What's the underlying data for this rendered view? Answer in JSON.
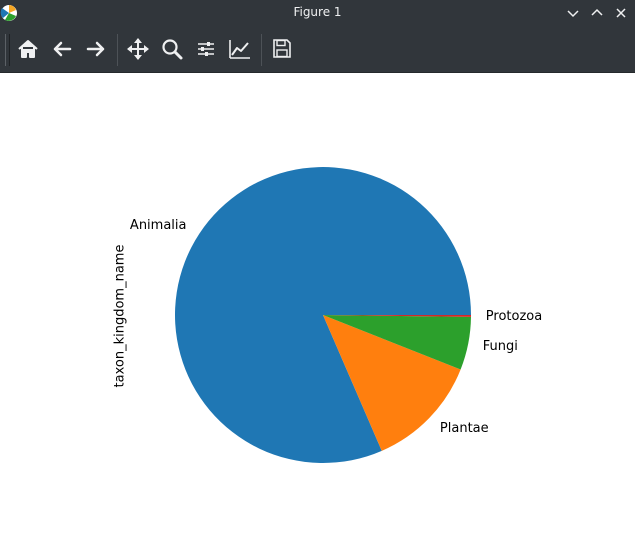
{
  "window": {
    "title": "Figure 1"
  },
  "toolbar": {
    "buttons": [
      {
        "icon": "home-icon",
        "label": "Home"
      },
      {
        "icon": "back-arrow-icon",
        "label": "Back"
      },
      {
        "icon": "forward-arrow-icon",
        "label": "Forward"
      },
      {
        "icon": "pan-icon",
        "label": "Pan"
      },
      {
        "icon": "zoom-icon",
        "label": "Zoom"
      },
      {
        "icon": "subplots-icon",
        "label": "Subplots"
      },
      {
        "icon": "axes-icon",
        "label": "Customize"
      },
      {
        "icon": "save-icon",
        "label": "Save"
      }
    ]
  },
  "chart_data": {
    "type": "pie",
    "ylabel": "taxon_kingdom_name",
    "categories": [
      "Animalia",
      "Plantae",
      "Fungi",
      "Protozoa"
    ],
    "values": [
      81.5,
      12.5,
      5.8,
      0.2
    ],
    "colors": [
      "#1f77b4",
      "#ff7f0e",
      "#2ca02c",
      "#d62728"
    ]
  }
}
